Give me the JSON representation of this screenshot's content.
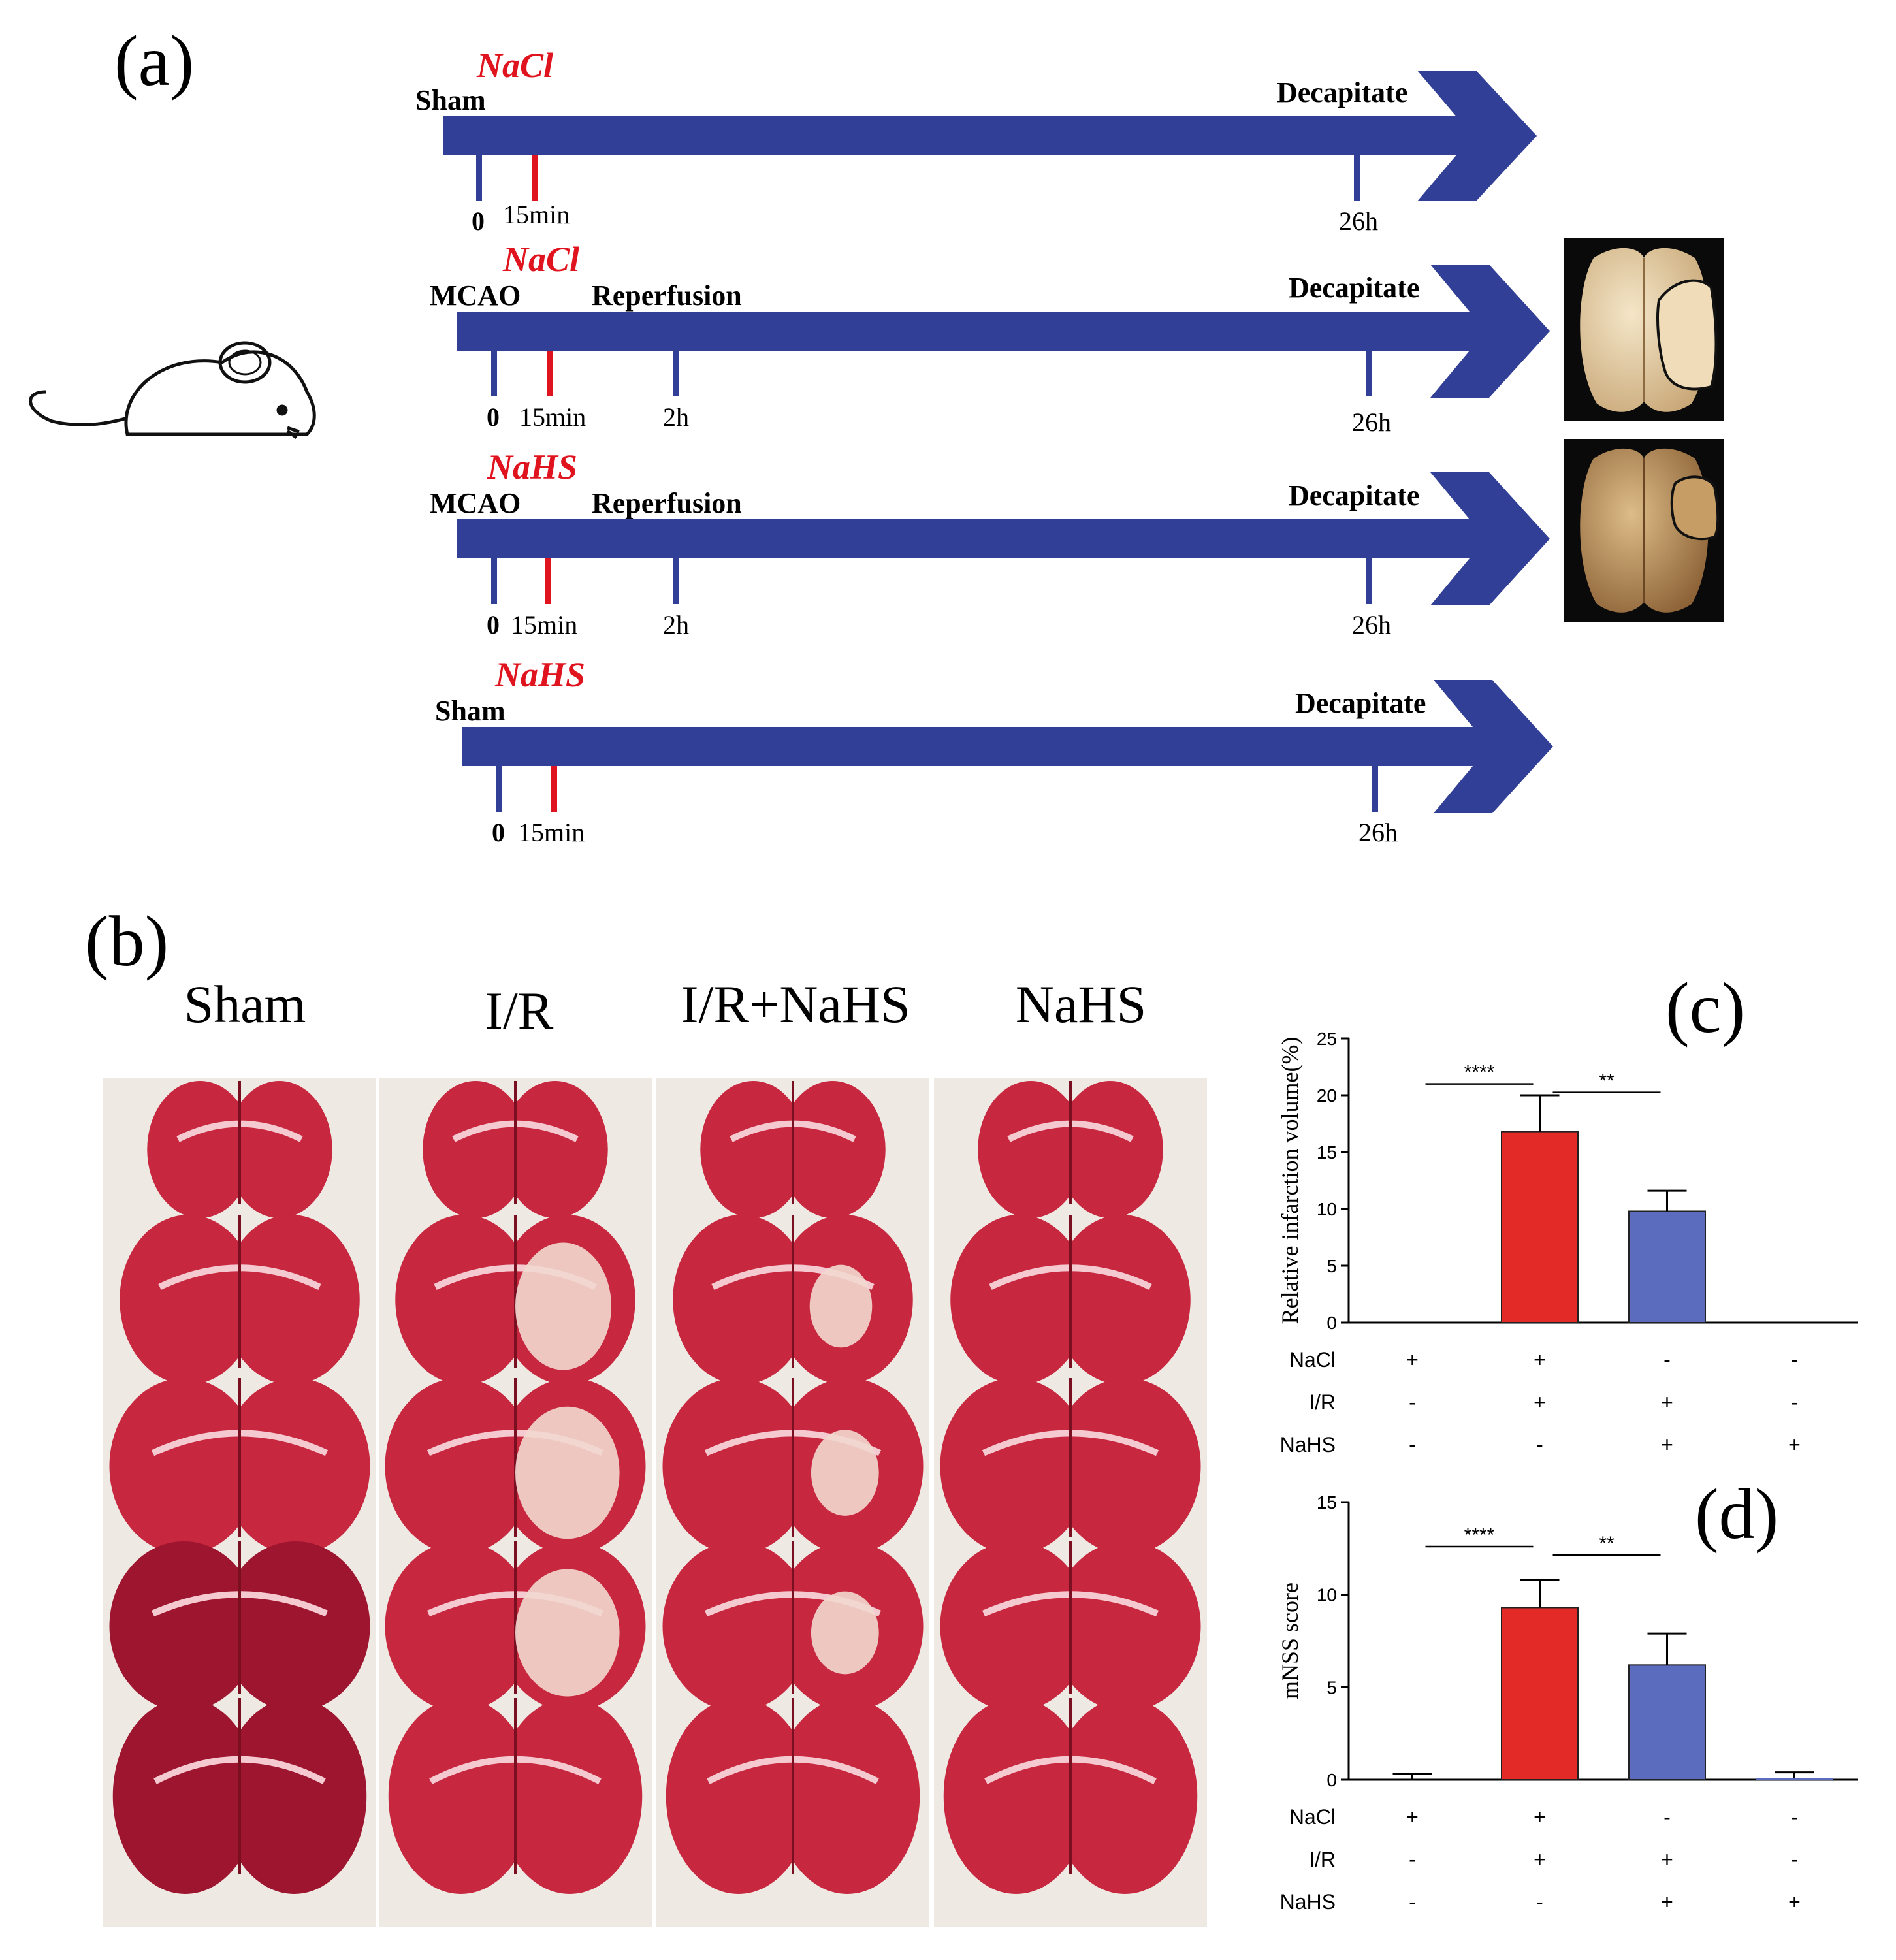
{
  "panels": {
    "a": "(a)",
    "b": "(b)",
    "c": "(c)",
    "d": "(d)"
  },
  "timeline": [
    {
      "drug": "NaCl",
      "start": "Sham",
      "reperfusion": "",
      "end": "Decapitate",
      "ticks": {
        "zero": "0",
        "drug_time": "15min",
        "reperfusion_time": "",
        "end_time": "26h"
      }
    },
    {
      "drug": "NaCl",
      "start": "MCAO",
      "reperfusion": "Reperfusion",
      "end": "Decapitate",
      "ticks": {
        "zero": "0",
        "drug_time": "15min",
        "reperfusion_time": "2h",
        "end_time": "26h"
      }
    },
    {
      "drug": "NaHS",
      "start": "MCAO",
      "reperfusion": "Reperfusion",
      "end": "Decapitate",
      "ticks": {
        "zero": "0",
        "drug_time": "15min",
        "reperfusion_time": "2h",
        "end_time": "26h"
      }
    },
    {
      "drug": "NaHS",
      "start": "Sham",
      "reperfusion": "",
      "end": "Decapitate",
      "ticks": {
        "zero": "0",
        "drug_time": "15min",
        "reperfusion_time": "",
        "end_time": "26h"
      }
    }
  ],
  "groups": [
    "Sham",
    "I/R",
    "I/R+NaHS",
    "NaHS"
  ],
  "colors": {
    "arrow": "#323f96",
    "drug_red": "#e0141e",
    "bar_ir": "#e32a26",
    "bar_nahs": "#5b6bbd",
    "tissue": "#c8283f",
    "tissue_dark": "#9e1530",
    "infarct": "#f2d8cf"
  },
  "chart_data": [
    {
      "type": "bar",
      "panel": "c",
      "ylabel": "Relative infarction volume(%)",
      "ylim": [
        0,
        25
      ],
      "yticks": [
        "0",
        "5",
        "10",
        "15",
        "20",
        "25"
      ],
      "values": [
        0,
        16.8,
        9.8,
        0
      ],
      "errors": [
        0,
        3.2,
        1.8,
        0
      ],
      "significance": [
        {
          "from": 0,
          "to": 1,
          "label": "****"
        },
        {
          "from": 1,
          "to": 2,
          "label": "**"
        }
      ],
      "conditions": [
        {
          "name": "NaCl",
          "marks": [
            "+",
            "+",
            "-",
            "-"
          ]
        },
        {
          "name": "I/R",
          "marks": [
            "-",
            "+",
            "+",
            "-"
          ]
        },
        {
          "name": "NaHS",
          "marks": [
            "-",
            "-",
            "+",
            "+"
          ]
        }
      ]
    },
    {
      "type": "bar",
      "panel": "d",
      "ylabel": "mNSS score",
      "ylim": [
        0,
        15
      ],
      "yticks": [
        "0",
        "5",
        "10",
        "15"
      ],
      "values": [
        0,
        9.3,
        6.2,
        0.1
      ],
      "errors": [
        0.3,
        1.5,
        1.7,
        0.3
      ],
      "significance": [
        {
          "from": 0,
          "to": 1,
          "label": "****"
        },
        {
          "from": 1,
          "to": 2,
          "label": "**"
        }
      ],
      "conditions": [
        {
          "name": "NaCl",
          "marks": [
            "+",
            "+",
            "-",
            "-"
          ]
        },
        {
          "name": "I/R",
          "marks": [
            "-",
            "+",
            "+",
            "-"
          ]
        },
        {
          "name": "NaHS",
          "marks": [
            "-",
            "-",
            "+",
            "+"
          ]
        }
      ]
    }
  ]
}
